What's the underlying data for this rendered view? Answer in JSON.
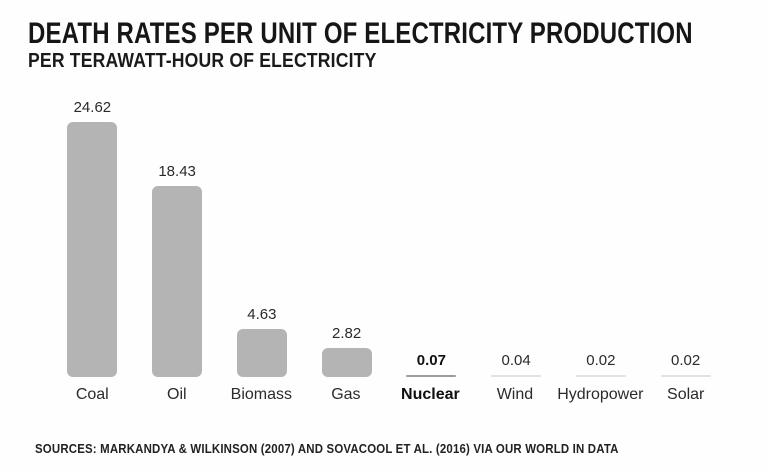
{
  "header": {
    "title": "DEATH RATES PER UNIT OF ELECTRICITY PRODUCTION",
    "subtitle": "PER TERAWATT-HOUR OF ELECTRICITY"
  },
  "footer": {
    "sources": "SOURCES: MARKANDYA & WILKINSON (2007) AND SOVACOOL ET AL. (2016) VIA OUR WORLD IN DATA"
  },
  "chart_data": {
    "type": "bar",
    "title": "DEATH RATES PER UNIT OF ELECTRICITY PRODUCTION",
    "subtitle": "PER TERAWATT-HOUR OF ELECTRICITY",
    "categories": [
      "Coal",
      "Oil",
      "Biomass",
      "Gas",
      "Nuclear",
      "Wind",
      "Hydropower",
      "Solar"
    ],
    "values": [
      24.62,
      18.43,
      4.63,
      2.82,
      0.07,
      0.04,
      0.02,
      0.02
    ],
    "value_labels": [
      "24.62",
      "18.43",
      "4.63",
      "2.82",
      "0.07",
      "0.04",
      "0.02",
      "0.02"
    ],
    "emphasized_category": "Nuclear",
    "xlabel": "",
    "ylabel": "",
    "ylim": [
      0,
      25
    ],
    "grid": false,
    "legend": false,
    "value_labels_position": "above-bar",
    "colors": {
      "bar": "#b5b4b4",
      "emphasized_thin_bar": "#9c9c9c",
      "thin_bar": "#e2e2e2",
      "text": "#1c1c1c"
    },
    "source": "SOURCES: MARKANDYA & WILKINSON (2007) AND SOVACOOL ET AL. (2016) VIA OUR WORLD IN DATA"
  }
}
